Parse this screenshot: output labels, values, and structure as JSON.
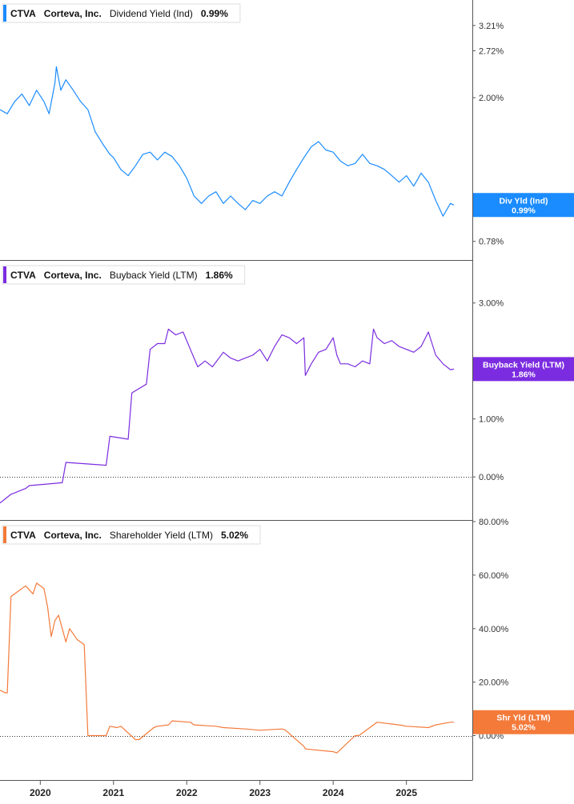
{
  "chart_data": [
    {
      "type": "line",
      "ticker": "CTVA",
      "company": "Corteva, Inc.",
      "metric": "Dividend Yield (Ind)",
      "current_value": "0.99%",
      "badge_label": "Div Yld (Ind)",
      "color": "#1a8cff",
      "y_scale": "log",
      "ylim": [
        0.72,
        3.6
      ],
      "ytick_values": [
        3.21,
        2.72,
        2.0,
        0.78
      ],
      "ytick_labels": [
        "3.21%",
        "2.72%",
        "2.00%",
        "0.78%"
      ],
      "series": [
        {
          "x": [
            2019.45,
            2019.55,
            2019.65,
            2019.75,
            2019.85,
            2019.95,
            2020.05,
            2020.12,
            2020.2,
            2020.22,
            2020.28,
            2020.35,
            2020.45,
            2020.55,
            2020.65,
            2020.75,
            2020.85,
            2020.95,
            2021.0,
            2021.1,
            2021.2,
            2021.3,
            2021.4,
            2021.5,
            2021.6,
            2021.7,
            2021.8,
            2021.9,
            2022.0,
            2022.1,
            2022.2,
            2022.3,
            2022.4,
            2022.5,
            2022.6,
            2022.7,
            2022.8,
            2022.9,
            2023.0,
            2023.1,
            2023.2,
            2023.3,
            2023.4,
            2023.5,
            2023.6,
            2023.7,
            2023.8,
            2023.9,
            2024.0,
            2024.1,
            2024.2,
            2024.3,
            2024.4,
            2024.5,
            2024.6,
            2024.7,
            2024.8,
            2024.9,
            2025.0,
            2025.1,
            2025.2,
            2025.3,
            2025.4,
            2025.5,
            2025.6,
            2025.65
          ],
          "y": [
            1.85,
            1.8,
            1.95,
            2.05,
            1.9,
            2.1,
            1.95,
            1.8,
            2.2,
            2.45,
            2.1,
            2.25,
            2.1,
            1.95,
            1.85,
            1.6,
            1.48,
            1.38,
            1.35,
            1.25,
            1.2,
            1.28,
            1.38,
            1.4,
            1.33,
            1.4,
            1.36,
            1.28,
            1.18,
            1.05,
            1.0,
            1.05,
            1.08,
            1.0,
            1.05,
            1.0,
            0.96,
            1.02,
            1.0,
            1.05,
            1.08,
            1.05,
            1.15,
            1.25,
            1.35,
            1.45,
            1.5,
            1.42,
            1.4,
            1.32,
            1.28,
            1.3,
            1.38,
            1.3,
            1.28,
            1.25,
            1.2,
            1.15,
            1.2,
            1.12,
            1.22,
            1.15,
            1.02,
            0.92,
            1.0,
            0.99
          ]
        }
      ]
    },
    {
      "type": "line",
      "ticker": "CTVA",
      "company": "Corteva, Inc.",
      "metric": "Buyback Yield (LTM)",
      "current_value": "1.86%",
      "badge_label": "Buyback Yield (LTM)",
      "color": "#7b2ce0",
      "y_scale": "linear",
      "ylim": [
        -0.55,
        3.3
      ],
      "ytick_values": [
        3.0,
        1.0,
        0.0
      ],
      "ytick_labels": [
        "3.00%",
        "1.00%",
        "0.00%"
      ],
      "zero_line": true,
      "series": [
        {
          "x": [
            2019.45,
            2019.55,
            2019.6,
            2019.8,
            2019.85,
            2020.3,
            2020.35,
            2020.9,
            2020.95,
            2021.2,
            2021.25,
            2021.45,
            2021.5,
            2021.6,
            2021.7,
            2021.75,
            2021.85,
            2021.95,
            2022.05,
            2022.15,
            2022.25,
            2022.35,
            2022.5,
            2022.6,
            2022.7,
            2022.8,
            2022.9,
            2023.0,
            2023.1,
            2023.2,
            2023.3,
            2023.4,
            2023.5,
            2023.6,
            2023.62,
            2023.7,
            2023.8,
            2023.9,
            2024.0,
            2024.05,
            2024.1,
            2024.2,
            2024.3,
            2024.4,
            2024.5,
            2024.55,
            2024.6,
            2024.7,
            2024.8,
            2024.9,
            2025.0,
            2025.1,
            2025.2,
            2025.3,
            2025.4,
            2025.5,
            2025.6,
            2025.65
          ],
          "y": [
            -0.45,
            -0.35,
            -0.3,
            -0.2,
            -0.15,
            -0.1,
            0.25,
            0.2,
            0.7,
            0.65,
            1.45,
            1.6,
            2.2,
            2.3,
            2.3,
            2.55,
            2.45,
            2.5,
            2.2,
            1.9,
            2.0,
            1.9,
            2.15,
            2.05,
            2.0,
            2.05,
            2.1,
            2.2,
            2.0,
            2.25,
            2.45,
            2.4,
            2.3,
            2.4,
            1.75,
            1.95,
            2.15,
            2.2,
            2.4,
            2.1,
            1.95,
            1.95,
            1.9,
            2.0,
            1.95,
            2.55,
            2.4,
            2.3,
            2.35,
            2.25,
            2.2,
            2.15,
            2.25,
            2.5,
            2.1,
            1.95,
            1.85,
            1.86
          ]
        }
      ]
    },
    {
      "type": "line",
      "ticker": "CTVA",
      "company": "Corteva, Inc.",
      "metric": "Shareholder Yield (LTM)",
      "current_value": "5.02%",
      "badge_label": "Shr Yld (LTM)",
      "color": "#f47a3a",
      "y_scale": "linear",
      "ylim": [
        -14.5,
        80.0
      ],
      "ytick_values": [
        80.0,
        60.0,
        40.0,
        20.0,
        0.0
      ],
      "ytick_labels": [
        "80.00%",
        "60.00%",
        "40.00%",
        "20.00%",
        "0.00%"
      ],
      "zero_line": true,
      "series": [
        {
          "x": [
            2019.45,
            2019.52,
            2019.55,
            2019.6,
            2019.7,
            2019.8,
            2019.9,
            2019.95,
            2020.05,
            2020.1,
            2020.15,
            2020.2,
            2020.25,
            2020.3,
            2020.35,
            2020.4,
            2020.45,
            2020.5,
            2020.55,
            2020.6,
            2020.65,
            2020.9,
            2020.95,
            2021.05,
            2021.1,
            2021.3,
            2021.35,
            2021.55,
            2021.6,
            2021.75,
            2021.8,
            2022.05,
            2022.1,
            2022.4,
            2022.5,
            2022.8,
            2023.0,
            2023.3,
            2023.35,
            2023.6,
            2023.62,
            2024.0,
            2024.05,
            2024.3,
            2024.35,
            2024.55,
            2024.6,
            2024.9,
            2025.0,
            2025.3,
            2025.4,
            2025.6,
            2025.65
          ],
          "y": [
            17.0,
            16.0,
            16.0,
            52.0,
            54.0,
            56.0,
            53.0,
            57.0,
            55.0,
            48.0,
            37.0,
            43.0,
            45.0,
            40.0,
            35.0,
            40.0,
            38.0,
            36.0,
            35.0,
            34.0,
            0.0,
            0.0,
            3.5,
            3.0,
            3.5,
            -1.5,
            -1.5,
            3.0,
            3.5,
            4.0,
            5.5,
            5.0,
            4.0,
            3.5,
            3.0,
            2.5,
            2.0,
            2.5,
            2.0,
            -4.0,
            -5.0,
            -6.0,
            -6.5,
            0.0,
            0.0,
            4.0,
            5.0,
            4.0,
            3.5,
            3.0,
            4.0,
            5.0,
            5.02
          ]
        }
      ]
    }
  ],
  "x_axis": {
    "range": [
      2019.45,
      2025.9
    ],
    "tick_values": [
      2020,
      2021,
      2022,
      2023,
      2024,
      2025
    ],
    "tick_labels": [
      "2020",
      "2021",
      "2022",
      "2023",
      "2024",
      "2025"
    ]
  }
}
